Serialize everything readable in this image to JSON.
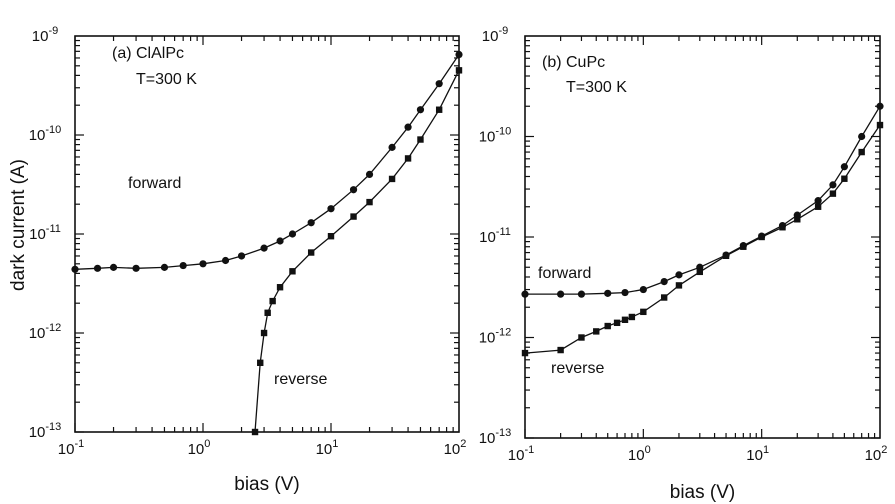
{
  "figure": {
    "ylabel": "dark current (A)"
  },
  "chart_data": [
    {
      "type": "scatter",
      "panel_label": "(a) ClAlPc",
      "temperature": "T=300 K",
      "xlabel": "bias (V)",
      "ylabel": "dark current (A)",
      "xscale": "log",
      "yscale": "log",
      "xlim": [
        0.1,
        100
      ],
      "ylim": [
        1e-13,
        1e-09
      ],
      "x_ticks": [
        {
          "value": 0.1,
          "base": "10",
          "exp": "-1"
        },
        {
          "value": 1,
          "base": "10",
          "exp": "0"
        },
        {
          "value": 10,
          "base": "10",
          "exp": "1"
        },
        {
          "value": 100,
          "base": "10",
          "exp": "2"
        }
      ],
      "y_ticks": [
        {
          "value": 1e-13,
          "base": "10",
          "exp": "-13"
        },
        {
          "value": 1e-12,
          "base": "10",
          "exp": "-12"
        },
        {
          "value": 1e-11,
          "base": "10",
          "exp": "-11"
        },
        {
          "value": 1e-10,
          "base": "10",
          "exp": "-10"
        },
        {
          "value": 1e-09,
          "base": "10",
          "exp": "-9"
        }
      ],
      "series": [
        {
          "name": "forward",
          "marker": "circle",
          "x": [
            0.1,
            0.15,
            0.2,
            0.3,
            0.5,
            0.7,
            1.0,
            1.5,
            2.0,
            3.0,
            4.0,
            5.0,
            7.0,
            10.0,
            15.0,
            20.0,
            30.0,
            40.0,
            50.0,
            70.0,
            100.0
          ],
          "y": [
            4.4e-12,
            4.5e-12,
            4.6e-12,
            4.5e-12,
            4.6e-12,
            4.8e-12,
            5e-12,
            5.4e-12,
            6e-12,
            7.2e-12,
            8.5e-12,
            1e-11,
            1.3e-11,
            1.8e-11,
            2.8e-11,
            4e-11,
            7.5e-11,
            1.2e-10,
            1.8e-10,
            3.3e-10,
            6.5e-10
          ]
        },
        {
          "name": "reverse",
          "marker": "square",
          "x": [
            2.55,
            2.8,
            3.0,
            3.2,
            3.5,
            4.0,
            5.0,
            7.0,
            10.0,
            15.0,
            20.0,
            30.0,
            40.0,
            50.0,
            70.0,
            100.0
          ],
          "y": [
            1e-13,
            5e-13,
            1e-12,
            1.6e-12,
            2.1e-12,
            2.9e-12,
            4.2e-12,
            6.5e-12,
            9.5e-12,
            1.5e-11,
            2.1e-11,
            3.6e-11,
            5.8e-11,
            9e-11,
            1.8e-10,
            4.5e-10
          ]
        }
      ]
    },
    {
      "type": "scatter",
      "panel_label": "(b) CuPc",
      "temperature": "T=300 K",
      "xlabel": "bias (V)",
      "xscale": "log",
      "yscale": "log",
      "xlim": [
        0.1,
        100
      ],
      "ylim": [
        1e-13,
        1e-09
      ],
      "x_ticks": [
        {
          "value": 0.1,
          "base": "10",
          "exp": "-1"
        },
        {
          "value": 1,
          "base": "10",
          "exp": "0"
        },
        {
          "value": 10,
          "base": "10",
          "exp": "1"
        },
        {
          "value": 100,
          "base": "10",
          "exp": "2"
        }
      ],
      "y_ticks": [
        {
          "value": 1e-13,
          "base": "10",
          "exp": "-13"
        },
        {
          "value": 1e-12,
          "base": "10",
          "exp": "-12"
        },
        {
          "value": 1e-11,
          "base": "10",
          "exp": "-11"
        },
        {
          "value": 1e-10,
          "base": "10",
          "exp": "-10"
        },
        {
          "value": 1e-09,
          "base": "10",
          "exp": "-9"
        }
      ],
      "series": [
        {
          "name": "forward",
          "marker": "circle",
          "x": [
            0.1,
            0.2,
            0.3,
            0.5,
            0.7,
            1.0,
            1.5,
            2.0,
            3.0,
            5.0,
            7.0,
            10.0,
            15.0,
            20.0,
            30.0,
            40.0,
            50.0,
            70.0,
            100.0
          ],
          "y": [
            2.7e-12,
            2.7e-12,
            2.7e-12,
            2.75e-12,
            2.8e-12,
            3e-12,
            3.6e-12,
            4.2e-12,
            5e-12,
            6.6e-12,
            8.2e-12,
            1.02e-11,
            1.3e-11,
            1.65e-11,
            2.3e-11,
            3.3e-11,
            5e-11,
            1e-10,
            2e-10
          ]
        },
        {
          "name": "reverse",
          "marker": "square",
          "x": [
            0.1,
            0.2,
            0.3,
            0.4,
            0.5,
            0.6,
            0.7,
            0.8,
            1.0,
            1.5,
            2.0,
            3.0,
            5.0,
            7.0,
            10.0,
            15.0,
            20.0,
            30.0,
            40.0,
            50.0,
            70.0,
            100.0
          ],
          "y": [
            7e-13,
            7.5e-13,
            1e-12,
            1.15e-12,
            1.3e-12,
            1.4e-12,
            1.5e-12,
            1.6e-12,
            1.8e-12,
            2.5e-12,
            3.3e-12,
            4.5e-12,
            6.5e-12,
            8e-12,
            1e-11,
            1.25e-11,
            1.5e-11,
            2e-11,
            2.7e-11,
            3.8e-11,
            7e-11,
            1.3e-10
          ]
        }
      ]
    }
  ]
}
